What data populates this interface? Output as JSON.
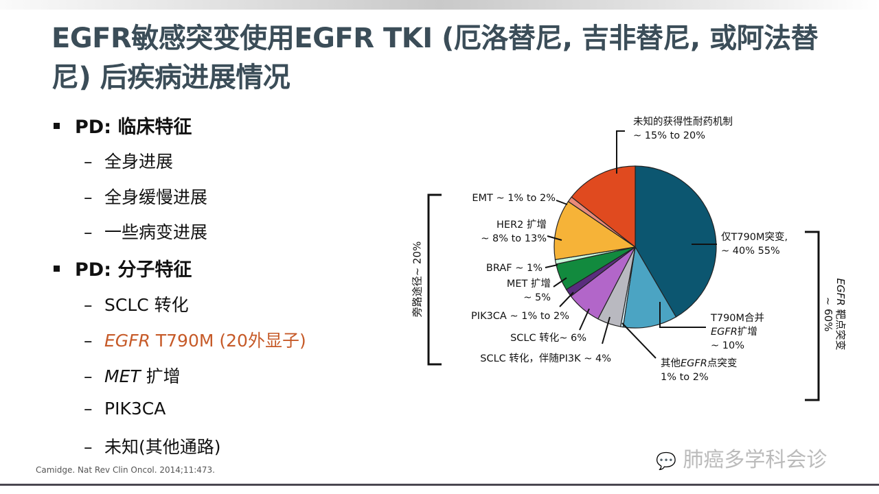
{
  "title": "EGFR敏感突变使用EGFR TKI (厄洛替尼, 吉非替尼, 或阿法替尼) 后疾病进展情况",
  "bullets": [
    {
      "text": "PD: 临床特征",
      "items": [
        "全身进展",
        "全身缓慢进展",
        "一些病变进展"
      ]
    },
    {
      "text": "PD: 分子特征",
      "items": [
        "SCLC 转化",
        "EGFR",
        "T790M (20外显子)",
        "MET",
        "扩增",
        "PIK3CA",
        "未知(其他通路)"
      ]
    }
  ],
  "citation": "Camidge. Nat Rev Clin Oncol. 2014;11:473.",
  "watermark": "肺癌多学科会诊",
  "chart_data": {
    "type": "pie",
    "start": "top",
    "direction": "clockwise",
    "slices": [
      {
        "name": "仅T790M突变",
        "value": 41.6,
        "color": "#0c5670"
      },
      {
        "name": "T790M合并EGFR扩增",
        "value": 10.8,
        "color": "#4ba4c3"
      },
      {
        "name": "其他EGFR点突变",
        "value": 0.5,
        "color": "#d5eff7"
      },
      {
        "name": "SCLC转化, 伴随PI3K",
        "value": 4.7,
        "color": "#b9b9c0"
      },
      {
        "name": "SCLC转化",
        "value": 7.0,
        "color": "#b266c9"
      },
      {
        "name": "PIK3CA",
        "value": 1.6,
        "color": "#5a2d7e"
      },
      {
        "name": "MET扩增",
        "value": 5.4,
        "color": "#128a3e"
      },
      {
        "name": "BRAF",
        "value": 0.9,
        "color": "#c9f6da"
      },
      {
        "name": "HER2扩增",
        "value": 12.0,
        "color": "#f6b338"
      },
      {
        "name": "EMT",
        "value": 1.1,
        "color": "#e98a7a"
      },
      {
        "name": "未知的获得性耐药机制",
        "value": 14.4,
        "color": "#e04a1f"
      }
    ],
    "labels": {
      "unknown": [
        "未知的获得性耐药机制",
        "~ 15% to 20%"
      ],
      "emt": "EMT ~ 1% to 2%",
      "her2": [
        "HER2 扩增",
        "~ 8% to 13%"
      ],
      "braf": "BRAF ~ 1%",
      "met": [
        "MET 扩增",
        "~ 5%"
      ],
      "pik3ca": "PIK3CA ~ 1% to 2%",
      "sclc": "SCLC 转化~ 6%",
      "sclc_pi3k": "SCLC 转化，伴随PI3K ~ 4%",
      "other_egfr": [
        "其他",
        "EGFR",
        "点突变",
        "1% to 2%"
      ],
      "t790m_amp": [
        "T790M合并",
        "EGFR",
        "扩增",
        "~ 10%"
      ],
      "t790m_only": [
        "仅T790M突变,",
        "~ 40% 55%"
      ]
    },
    "groups": {
      "bypass": "旁路途径~ 20%",
      "egfr_target": "EGFR",
      "egfr_target_rest": " 靶点突变",
      "egfr_target_pct": "~ 60%"
    }
  }
}
